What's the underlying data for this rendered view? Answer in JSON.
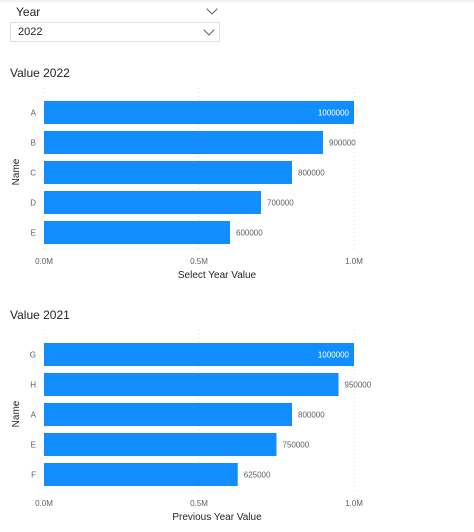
{
  "slicer": {
    "header": "Year",
    "selected": "2022"
  },
  "colors": {
    "bar": "#118DFF",
    "grid": "#e1dfdd"
  },
  "chart_data": [
    {
      "type": "bar",
      "orientation": "horizontal",
      "title": "Value 2022",
      "categories": [
        "A",
        "B",
        "C",
        "D",
        "E"
      ],
      "values": [
        1000000,
        900000,
        800000,
        700000,
        600000
      ],
      "data_labels": [
        "1000000",
        "900000",
        "800000",
        "700000",
        "600000"
      ],
      "xlabel": "Select Year Value",
      "ylabel": "Name",
      "xlim": [
        0,
        1000000
      ],
      "xticks": [
        0,
        500000,
        1000000
      ],
      "xtick_labels": [
        "0.0M",
        "0.5M",
        "1.0M"
      ],
      "grid": "vertical dotted"
    },
    {
      "type": "bar",
      "orientation": "horizontal",
      "title": "Value 2021",
      "categories": [
        "G",
        "H",
        "A",
        "E",
        "F"
      ],
      "values": [
        1000000,
        950000,
        800000,
        750000,
        625000
      ],
      "data_labels": [
        "1000000",
        "950000",
        "800000",
        "750000",
        "625000"
      ],
      "xlabel": "Previous Year Value",
      "ylabel": "Name",
      "xlim": [
        0,
        1000000
      ],
      "xticks": [
        0,
        500000,
        1000000
      ],
      "xtick_labels": [
        "0.0M",
        "0.5M",
        "1.0M"
      ],
      "grid": "vertical dotted"
    }
  ]
}
